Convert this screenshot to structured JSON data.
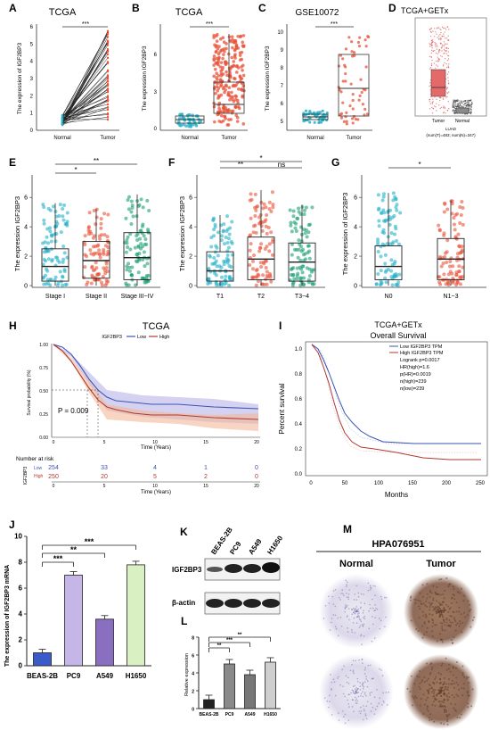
{
  "panel_letters": [
    "A",
    "B",
    "C",
    "D",
    "E",
    "F",
    "G",
    "H",
    "I",
    "J",
    "K",
    "L",
    "M"
  ],
  "colors": {
    "normal": "#27b3c9",
    "tumor": "#e8533a",
    "stage3": "#1a9e74",
    "blue": "#3a55b4",
    "red": "#b03a2e",
    "green_bar": "#d9f0c2",
    "lilac_bar": "#c6b6e8",
    "purple_bar": "#8a6ec0",
    "gray_bar": "#6e6e6e"
  },
  "A": {
    "title": "TCGA",
    "ylabel": "The expression of IGF2BP3",
    "xticks": [
      "Normal",
      "Tumor"
    ],
    "yticks": [
      "0",
      "1",
      "2",
      "3",
      "4",
      "5",
      "6"
    ],
    "sig": "***"
  },
  "B": {
    "title": "TCGA",
    "ylabel": "The expression IGF2BP3",
    "xticks": [
      "Normal",
      "Tumor"
    ],
    "yticks": [
      "0",
      "3",
      "6"
    ],
    "sig": "***"
  },
  "C": {
    "title": "GSE10072",
    "ylabel": "The expression IGF2BP3",
    "xticks": [
      "Normal",
      "Tumor"
    ],
    "yticks": [
      "5",
      "6",
      "7",
      "8",
      "9",
      "10"
    ],
    "sig": "***"
  },
  "D": {
    "title": "TCGA+GETx",
    "xticks": [
      "Tumor",
      "Normal"
    ],
    "sub1": "LUAD",
    "sub2": "(num(T)=483; num(N)=347)"
  },
  "E": {
    "ylabel": "The expression IGF2BP3",
    "xticks": [
      "Stage I",
      "Stage II",
      "Stage III~IV"
    ],
    "yticks": [
      "0",
      "2",
      "4",
      "6"
    ],
    "sig": [
      "*",
      "**"
    ]
  },
  "F": {
    "ylabel": "The expression IGF2BP3",
    "xticks": [
      "T1",
      "T2",
      "T3~4"
    ],
    "yticks": [
      "0",
      "2",
      "4",
      "6"
    ],
    "sig": [
      "**",
      "*",
      "ns"
    ]
  },
  "G": {
    "ylabel": "The expression of IGF2BP3",
    "xticks": [
      "N0",
      "N1~3"
    ],
    "yticks": [
      "0",
      "2",
      "4",
      "6"
    ],
    "sig": "*"
  },
  "H": {
    "title": "TCGA",
    "legend_title": "IGF2BP3",
    "legend_low": "Low",
    "legend_high": "High",
    "ylabel": "Survival probability (%)",
    "xlabel": "Time (Years)",
    "yticks": [
      "0.00",
      "0.25",
      "0.50",
      "0.75",
      "1.00"
    ],
    "xticks": [
      "0",
      "5",
      "10",
      "15",
      "20"
    ],
    "pval": "P = 0.009",
    "risk_title": "Number at risk",
    "risk_low": [
      "254",
      "33",
      "4",
      "1",
      "0"
    ],
    "risk_high": [
      "250",
      "20",
      "5",
      "2",
      "0"
    ],
    "risk_low_lbl": "Low",
    "risk_high_lbl": "High",
    "risk_ylabel": "IGF2BP3",
    "risk_xlabel": "Time (Years)"
  },
  "I": {
    "title1": "TCGA+GETx",
    "title2": "Overall Survival",
    "ylabel": "Percent survival",
    "xlabel": "Months",
    "xticks": [
      "0",
      "50",
      "100",
      "150",
      "200",
      "250"
    ],
    "yticks": [
      "0.0",
      "0.2",
      "0.4",
      "0.6",
      "0.8",
      "1.0"
    ],
    "legend_low": "Low IGF2BP3 TPM",
    "legend_high": "High IGF2BP3 TPM",
    "stats": [
      "Logrank p=0.0017",
      "HR(high)=1.6",
      "p(HR)=0.0019",
      "n(high)=239",
      "n(low)=239"
    ]
  },
  "J": {
    "ylabel": "The expression of IGF2BP3 mRNA",
    "categories": [
      "BEAS-2B",
      "PC9",
      "A549",
      "H1650"
    ],
    "values": [
      1.0,
      7.0,
      3.6,
      7.8
    ],
    "yticks": [
      "0",
      "2",
      "4",
      "6",
      "8",
      "10"
    ],
    "sig": [
      "***",
      "**",
      "***"
    ]
  },
  "K": {
    "cells": [
      "BEAS-2B",
      "PC9",
      "A549",
      "H1650"
    ],
    "bands": [
      "IGF2BP3",
      "β-actin"
    ]
  },
  "L": {
    "ylabel": "Relative expression",
    "categories": [
      "BEAS-2B",
      "PC9",
      "A549",
      "H1650"
    ],
    "values": [
      1.0,
      5.0,
      3.8,
      5.2
    ],
    "yticks": [
      "0",
      "2",
      "4",
      "6",
      "8"
    ],
    "sig": [
      "**",
      "***",
      "**"
    ]
  },
  "M": {
    "title": "HPA076951",
    "normal": "Normal",
    "tumor": "Tumor"
  },
  "chart_data": [
    {
      "panel": "J",
      "type": "bar",
      "categories": [
        "BEAS-2B",
        "PC9",
        "A549",
        "H1650"
      ],
      "values": [
        1.0,
        7.0,
        3.6,
        7.8
      ],
      "ylabel": "The expression of IGF2BP3 mRNA",
      "ylim": [
        0,
        10
      ]
    },
    {
      "panel": "L",
      "type": "bar",
      "categories": [
        "BEAS-2B",
        "PC9",
        "A549",
        "H1650"
      ],
      "values": [
        1.0,
        5.0,
        3.8,
        5.2
      ],
      "ylabel": "Relative expression",
      "ylim": [
        0,
        8
      ]
    },
    {
      "panel": "H",
      "type": "line",
      "series": [
        {
          "name": "Low",
          "values": [
            254,
            33,
            4,
            1,
            0
          ]
        },
        {
          "name": "High",
          "values": [
            250,
            20,
            5,
            2,
            0
          ]
        }
      ],
      "x": [
        0,
        5,
        10,
        15,
        20
      ],
      "xlabel": "Time (Years)"
    }
  ]
}
